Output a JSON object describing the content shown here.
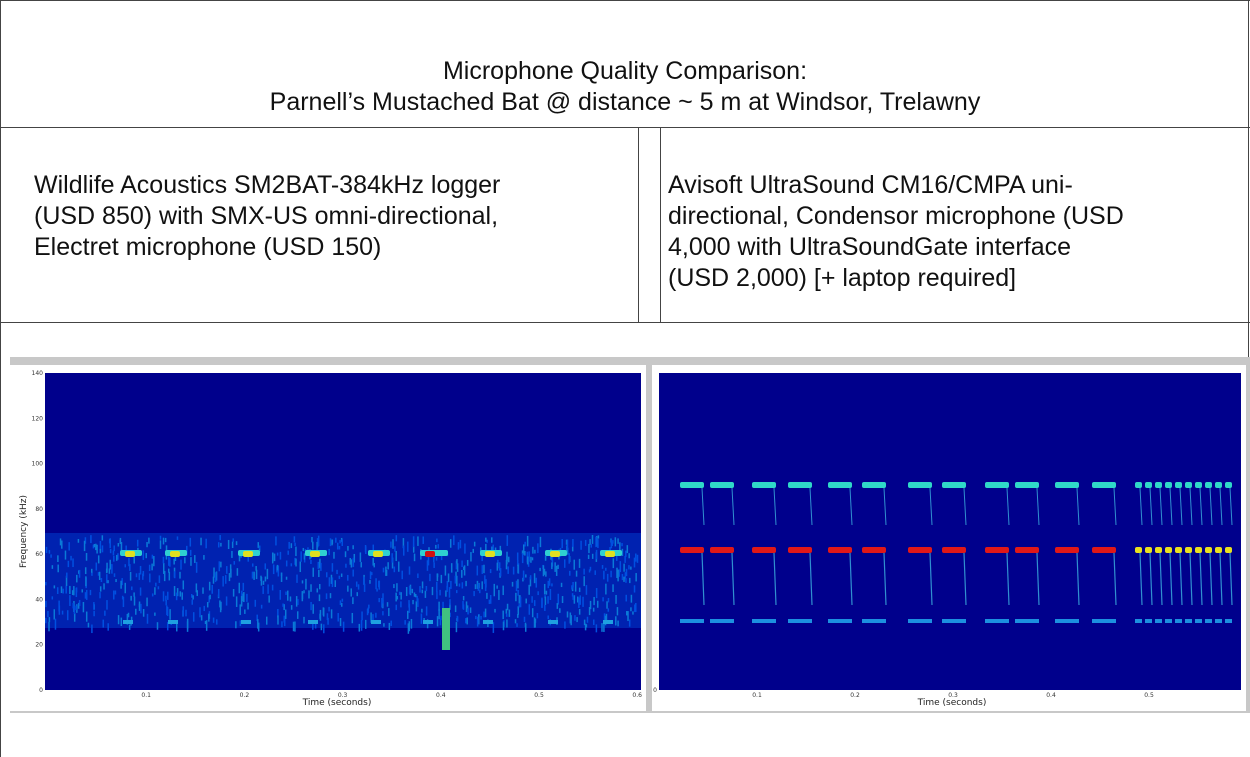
{
  "header": {
    "title": "Microphone Quality Comparison:",
    "subtitle": "Parnell’s Mustached Bat @ distance ~ 5 m at Windsor, Trelawny"
  },
  "table": {
    "columns": [
      {
        "lines": [
          "Wildlife Acoustics SM2BAT-384kHz logger",
          "(USD 850) with SMX-US omni-directional,",
          "Electret microphone (USD 150)"
        ]
      },
      {
        "lines": [
          "Avisoft UltraSound CM16/CMPA uni-",
          "directional, Condensor microphone (USD",
          "4,000 with UltraSoundGate interface",
          "(USD 2,000)  [+ laptop required]"
        ]
      }
    ]
  },
  "spectrograms": [
    {
      "y_label": "Frequency (kHz)",
      "x_label": "Time (seconds)",
      "yticks": [
        "0",
        "20",
        "40",
        "60",
        "80",
        "100",
        "120",
        "140"
      ],
      "xticks": [
        "0.1",
        "0.2",
        "0.3",
        "0.4",
        "0.5",
        "0.6"
      ]
    },
    {
      "x_label": "Time (seconds)",
      "yticks": [
        "0"
      ],
      "xticks": [
        "0.1",
        "0.2",
        "0.3",
        "0.4",
        "0.5"
      ]
    }
  ]
}
